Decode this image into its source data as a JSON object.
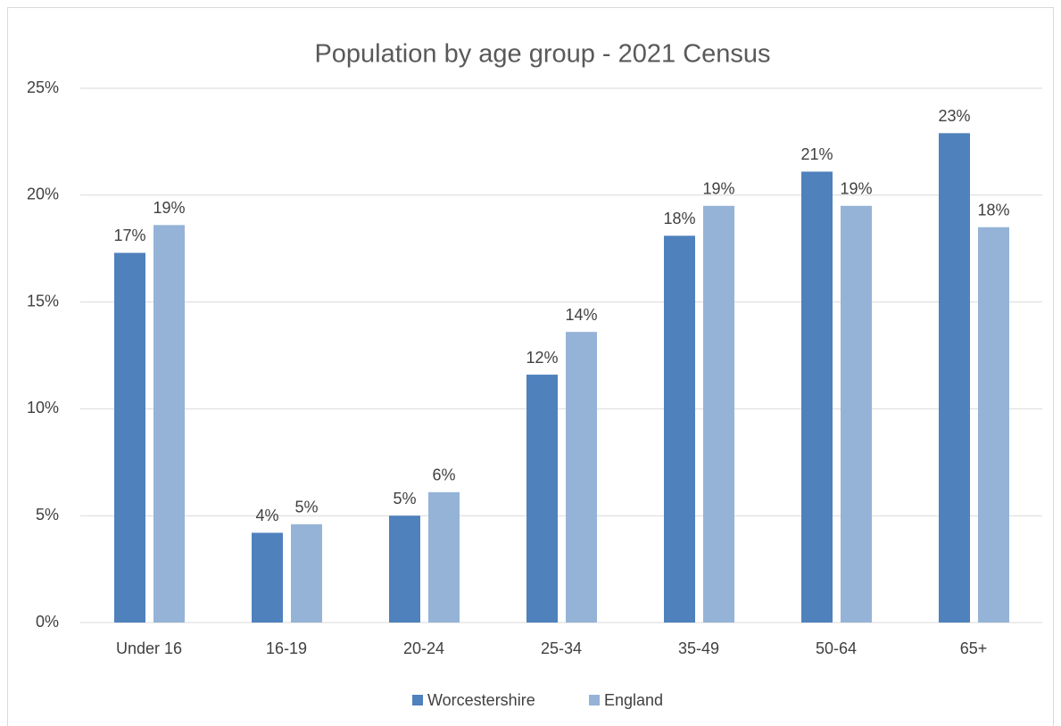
{
  "chart_data": {
    "type": "bar",
    "title": "Population by age group - 2021 Census",
    "categories": [
      "Under 16",
      "16-19",
      "20-24",
      "25-34",
      "35-49",
      "50-64",
      "65+"
    ],
    "series": [
      {
        "name": "Worcestershire",
        "color": "#4f81bd",
        "values": [
          17.3,
          4.2,
          5.0,
          11.6,
          18.1,
          21.1,
          22.9
        ],
        "value_labels": [
          "17%",
          "4%",
          "5%",
          "12%",
          "18%",
          "21%",
          "23%"
        ]
      },
      {
        "name": "England",
        "color": "#95b3d7",
        "values": [
          18.6,
          4.6,
          6.1,
          13.6,
          19.5,
          19.5,
          18.5
        ],
        "value_labels": [
          "19%",
          "5%",
          "6%",
          "14%",
          "19%",
          "19%",
          "18%"
        ]
      }
    ],
    "ylim": [
      0,
      25
    ],
    "yticks": [
      {
        "value": 0,
        "label": "0%"
      },
      {
        "value": 5,
        "label": "5%"
      },
      {
        "value": 10,
        "label": "10%"
      },
      {
        "value": 15,
        "label": "15%"
      },
      {
        "value": 20,
        "label": "20%"
      },
      {
        "value": 25,
        "label": "25%"
      }
    ],
    "grid": true,
    "legend": "bottom"
  }
}
